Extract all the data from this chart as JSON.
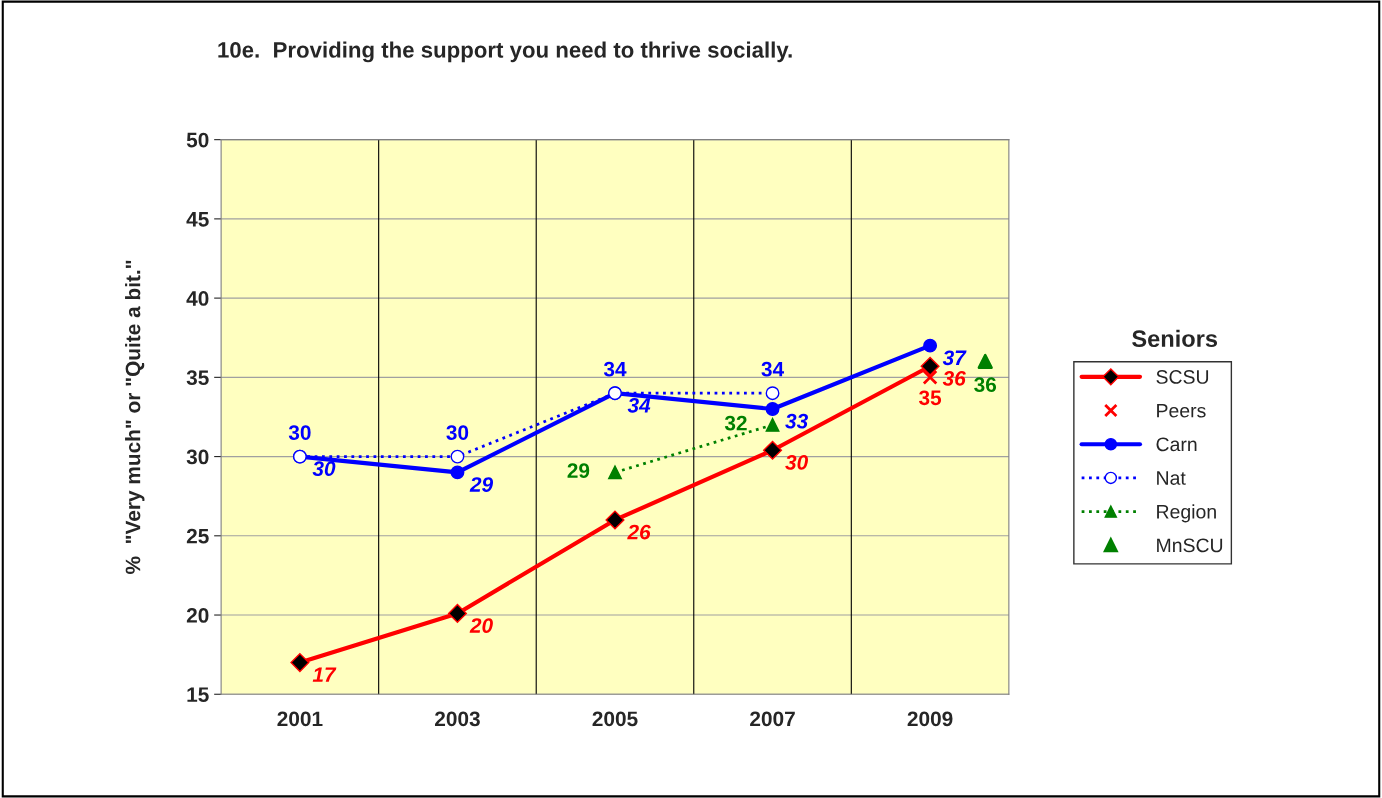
{
  "chart_data": {
    "type": "line",
    "title": "10e.  Providing the support you need to thrive socially.",
    "ylabel": "%  \"Very much\" or \"Quite a bit.\"",
    "legend_title": "Seniors",
    "categories": [
      "2001",
      "2003",
      "2005",
      "2007",
      "2009"
    ],
    "ylim": [
      15,
      50
    ],
    "yticks": [
      15,
      20,
      25,
      30,
      35,
      40,
      45,
      50
    ],
    "grid": true,
    "legend": "right",
    "series": [
      {
        "name": "SCSU",
        "color": "#ff0000",
        "marker": "diamond",
        "line_style": "solid",
        "values": [
          17.0,
          20.1,
          26.0,
          30.4,
          35.7
        ],
        "value_labels": [
          "17",
          "20",
          "26",
          "30",
          "36"
        ]
      },
      {
        "name": "Peers",
        "type": "scatter",
        "color": "#ff0000",
        "marker": "cross",
        "values": [
          null,
          null,
          null,
          null,
          35.0
        ],
        "value_labels": [
          null,
          null,
          null,
          null,
          "35"
        ]
      },
      {
        "name": "Carn",
        "color": "#0000ff",
        "marker": "circle",
        "line_style": "solid",
        "values": [
          30,
          29,
          34,
          33,
          37
        ],
        "value_labels": [
          "30",
          "29",
          "34",
          "33",
          "37"
        ]
      },
      {
        "name": "Nat",
        "color": "#0000ff",
        "marker": "circle",
        "line_style": "dotted",
        "values": [
          30,
          30,
          34,
          34,
          null
        ],
        "value_labels": [
          "30",
          "30",
          "34",
          "34",
          null
        ]
      },
      {
        "name": "Region",
        "color": "#008000",
        "marker": "triangle",
        "line_style": "dotted",
        "values": [
          null,
          null,
          29,
          32,
          null
        ],
        "value_labels": [
          null,
          null,
          "29",
          "32",
          null
        ]
      },
      {
        "name": "MnSCU",
        "type": "scatter",
        "color": "#008000",
        "marker": "triangle",
        "values": [
          null,
          null,
          null,
          null,
          36
        ],
        "value_labels": [
          null,
          null,
          null,
          null,
          "36"
        ]
      }
    ]
  }
}
